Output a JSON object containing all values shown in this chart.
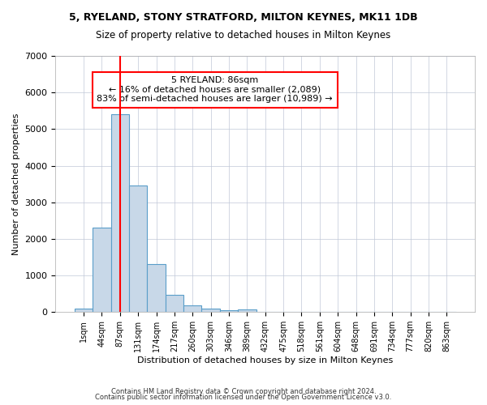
{
  "title1": "5, RYELAND, STONY STRATFORD, MILTON KEYNES, MK11 1DB",
  "title2": "Size of property relative to detached houses in Milton Keynes",
  "xlabel": "Distribution of detached houses by size in Milton Keynes",
  "ylabel": "Number of detached properties",
  "annotation_lines": [
    "5 RYELAND: 86sqm",
    "← 16% of detached houses are smaller (2,089)",
    "83% of semi-detached houses are larger (10,989) →"
  ],
  "bins": [
    "1sqm",
    "44sqm",
    "87sqm",
    "131sqm",
    "174sqm",
    "217sqm",
    "260sqm",
    "303sqm",
    "346sqm",
    "389sqm",
    "432sqm",
    "475sqm",
    "518sqm",
    "561sqm",
    "604sqm",
    "648sqm",
    "691sqm",
    "734sqm",
    "777sqm",
    "820sqm",
    "863sqm"
  ],
  "values": [
    100,
    2300,
    5400,
    3450,
    1300,
    480,
    175,
    90,
    60,
    75,
    0,
    0,
    0,
    0,
    0,
    0,
    0,
    0,
    0,
    0,
    0
  ],
  "bar_color": "#c8d8e8",
  "bar_edge_color": "#5a9ec9",
  "red_line_bin": 2,
  "ylim": [
    0,
    7000
  ],
  "footnote1": "Contains HM Land Registry data © Crown copyright and database right 2024.",
  "footnote2": "Contains public sector information licensed under the Open Government Licence v3.0."
}
